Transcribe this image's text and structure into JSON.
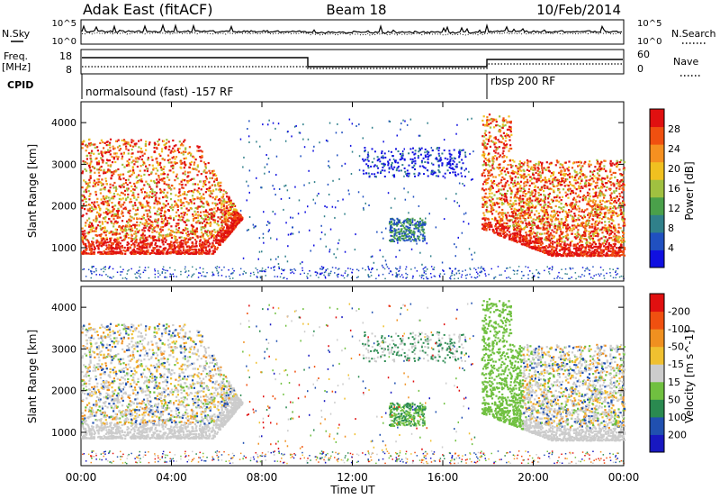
{
  "header": {
    "title": "Adak East (fitACF)",
    "beam": "Beam 18",
    "date": "10/Feb/2014"
  },
  "noise_panel": {
    "left_label": "N.Sky",
    "left_ticks": [
      "10^5",
      "10^0"
    ],
    "right_label": "N.Search",
    "right_ticks": [
      "10^5",
      "10^0"
    ]
  },
  "freq_panel": {
    "left_label_1": "Freq.",
    "left_label_2": "[MHz]",
    "left_ticks": [
      "18",
      "8"
    ],
    "right_label": "Nave",
    "right_ticks": [
      "60",
      "0"
    ],
    "cpid_label": "CPID",
    "cpid_segments": [
      "normalsound (fast) -157 RF",
      "rbsp 200 RF"
    ]
  },
  "chart_data": [
    {
      "type": "heatmap",
      "title": "",
      "ylabel": "Slant Range [km]",
      "xlabel": "Time UT",
      "ylim": [
        200,
        4500
      ],
      "y_ticks": [
        1000,
        2000,
        3000,
        4000
      ],
      "x_tick_labels": [
        "00:00",
        "04:00",
        "08:00",
        "12:00",
        "16:00",
        "20:00",
        "00:00"
      ],
      "colorbar_label": "Power [dB]",
      "colorbar_ticks": [
        "4",
        "8",
        "12",
        "16",
        "20",
        "24",
        "28"
      ],
      "colorbar_colors": [
        "#1010e0",
        "#2050c0",
        "#30808a",
        "#4aa04a",
        "#a0c040",
        "#f0c020",
        "#f59020",
        "#f05010",
        "#e01010"
      ]
    },
    {
      "type": "heatmap",
      "title": "",
      "ylabel": "Slant Range [km]",
      "xlabel": "Time UT",
      "ylim": [
        200,
        4500
      ],
      "y_ticks": [
        1000,
        2000,
        3000,
        4000
      ],
      "x_tick_labels": [
        "00:00",
        "04:00",
        "08:00",
        "12:00",
        "16:00",
        "20:00",
        "00:00"
      ],
      "colorbar_label": "Velocity [m s^-1]",
      "colorbar_ticks": [
        "200",
        "100",
        "50",
        "15",
        "-15",
        "-50",
        "-100",
        "-200"
      ],
      "colorbar_colors": [
        "#1818c0",
        "#2050b0",
        "#2a8a50",
        "#70c040",
        "#cccccc",
        "#f0c030",
        "#f09020",
        "#f05010",
        "#e01010"
      ]
    }
  ]
}
